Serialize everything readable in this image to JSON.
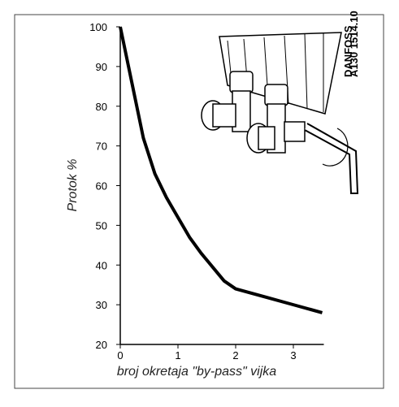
{
  "chart_data": {
    "type": "line",
    "ylabel": "Protok %",
    "xlabel": "broj okretaja \"by-pass\" vijka",
    "x": [
      0,
      0.2,
      0.4,
      0.6,
      0.8,
      1.0,
      1.2,
      1.4,
      1.6,
      1.8,
      2.0,
      2.5,
      3.0,
      3.5
    ],
    "values": [
      100,
      86,
      72,
      63,
      57,
      52,
      47,
      43,
      39.5,
      36,
      34,
      32,
      30,
      28
    ],
    "color": "#000000",
    "xlim": [
      0,
      3.5
    ],
    "xticks": [
      0,
      1,
      2,
      3
    ],
    "ylim": [
      20,
      100
    ],
    "yticks": [
      20,
      30,
      40,
      50,
      60,
      70,
      80,
      90,
      100
    ],
    "illustration_label": [
      "DANFOSS",
      "A130 1514.10"
    ]
  }
}
